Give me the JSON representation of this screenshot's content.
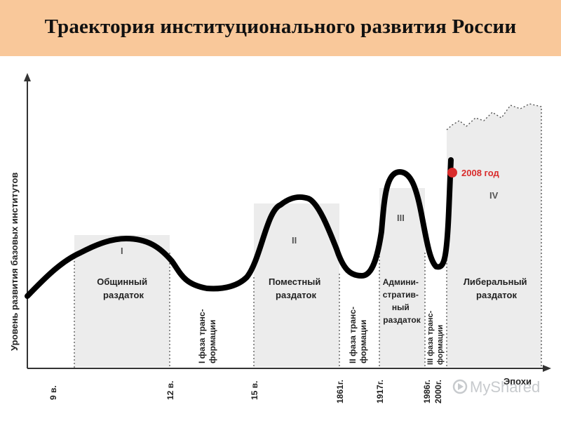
{
  "title": "Траектория институционального развития России",
  "y_axis_label": "Уровень развития базовых институтов",
  "x_axis_label": "Эпохи",
  "eras": {
    "obshchinny": [
      "Общинный",
      "раздаток"
    ],
    "pomestny": [
      "Поместный",
      "раздаток"
    ],
    "admin": [
      "Админи-",
      "стратив-",
      "ный",
      "раздаток"
    ],
    "liberal": [
      "Либеральный",
      "раздаток"
    ]
  },
  "phases": {
    "phase1": [
      "I фаза транс-",
      "формации"
    ],
    "phase2": [
      "II фаза транс-",
      "формации"
    ],
    "phase3": [
      "III фаза транс-",
      "формации"
    ]
  },
  "roman": {
    "r1": "I",
    "r2": "II",
    "r3": "III",
    "r4": "IV"
  },
  "ticks": {
    "t9": "9 в.",
    "t12": "12 в.",
    "t15": "15 в.",
    "t1861": "1861г.",
    "t1917": "1917г.",
    "t1986": "1986г.",
    "t2000": "2000г."
  },
  "marker_label": "2008 год",
  "watermark": "MyShared",
  "colors": {
    "header_bg": "#f9c89a",
    "era_fill": "#ececec",
    "curve": "#000000",
    "marker": "#d92b2b"
  }
}
